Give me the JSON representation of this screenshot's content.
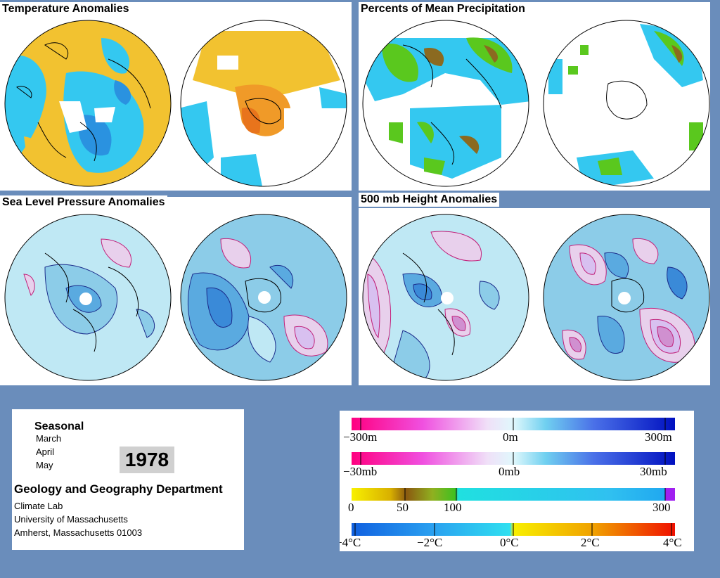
{
  "panels": {
    "temperature": {
      "title": "Temperature Anomalies"
    },
    "precipitation": {
      "title": "Percents of Mean Precipitation"
    },
    "pressure": {
      "title": "Sea Level Pressure Anomalies"
    },
    "height": {
      "title": "500 mb Height Anomalies"
    }
  },
  "info": {
    "period": "Seasonal",
    "months": [
      "March",
      "April",
      "May"
    ],
    "year": "1978",
    "department": "Geology and Geography Department",
    "lines": [
      "Climate Lab",
      "University of Massachusetts",
      "Amherst, Massachusetts 01003"
    ]
  },
  "legend": {
    "height": {
      "labels": [
        "−300m",
        "0m",
        "300m"
      ]
    },
    "pressure": {
      "labels": [
        "−30mb",
        "0mb",
        "30mb"
      ]
    },
    "precip": {
      "labels": [
        "0",
        "50",
        "100",
        "300"
      ]
    },
    "temp": {
      "labels": [
        "−4°C",
        "−2°C",
        "0°C",
        "2°C",
        "4°C"
      ]
    }
  },
  "colors": {
    "background": "#6a8dbb",
    "temp_warm": "#f2c230",
    "temp_cool": "#34c8f0",
    "precip_dry": "#8b6a20",
    "precip_wet": "#5ac81e",
    "anomaly_neg": "#3a8ad8",
    "anomaly_pos": "#e8c8e8",
    "contour_pos": "#c0207a",
    "contour_neg": "#1a2a8a"
  }
}
